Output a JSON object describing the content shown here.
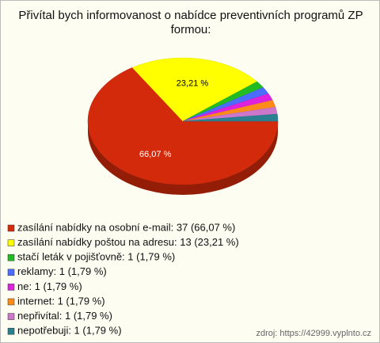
{
  "chart_data": {
    "type": "pie",
    "title": "Přivítal bych informovanost o nabídce preventivních programů ZP formou:",
    "categories": [
      "zasílání nabídky na osobní e-mail: 37 (66,07 %)",
      "zasílání nabídky poštou na adresu: 13 (23,21 %)",
      "stačí leták v pojišťovně: 1 (1,79 %)",
      "reklamy: 1 (1,79 %)",
      "ne: 1 (1,79 %)",
      "internet: 1 (1,79 %)",
      "nepřivítal: 1 (1,79 %)",
      "nepotřebuji: 1 (1,79 %)"
    ],
    "values": [
      66.07,
      23.21,
      1.79,
      1.79,
      1.79,
      1.79,
      1.79,
      1.79
    ],
    "value_labels": [
      "66,07 %",
      "23,21 %",
      null,
      null,
      null,
      null,
      null,
      null
    ],
    "colors": [
      "#d42a0c",
      "#ffff00",
      "#22bb22",
      "#4a6cff",
      "#dd22dd",
      "#ff8c1a",
      "#cc77cc",
      "#2a8090"
    ],
    "source": "zdroj: https://42999.vyplnto.cz"
  }
}
